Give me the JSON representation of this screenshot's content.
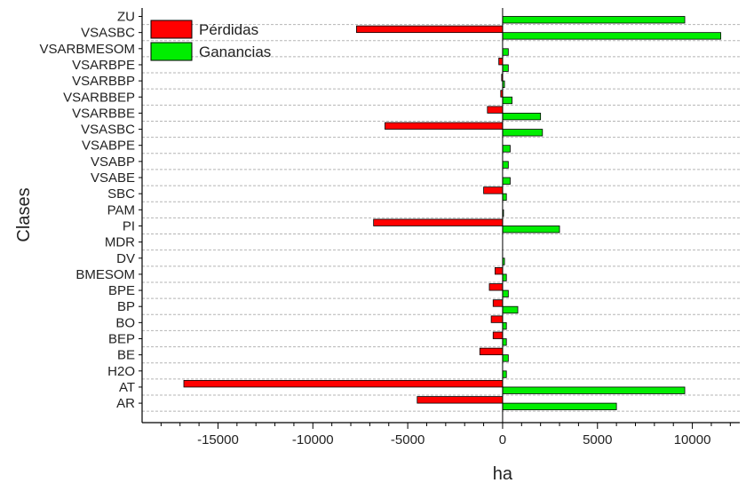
{
  "chart_data": {
    "type": "bar",
    "orientation": "horizontal",
    "ylabel": "Clases",
    "xlabel": "ha",
    "xlim": [
      -19000,
      12500
    ],
    "xticks": [
      -15000,
      -10000,
      -5000,
      0,
      5000,
      10000
    ],
    "xtick_labels": [
      "-15000",
      "-10000",
      "-5000",
      "0",
      "5000",
      "10000"
    ],
    "grid": "horizontal dashed",
    "legend_position": "top-left",
    "categories": [
      "ZU",
      "VSASBC",
      "VSARBMESOM",
      "VSARBPE",
      "VSARBBP",
      "VSARBBEP",
      "VSARBBE",
      "VSASBC",
      "VSABPE",
      "VSABP",
      "VSABE",
      "SBC",
      "PAM",
      "PI",
      "MDR",
      "DV",
      "BMESOM",
      "BPE",
      "BP",
      "BO",
      "BEP",
      "BE",
      "H2O",
      "AT",
      "AR"
    ],
    "series": [
      {
        "name": "Pérdidas",
        "color": "#ff0000",
        "values": [
          0,
          -7700,
          0,
          -200,
          -50,
          -100,
          -800,
          -6200,
          0,
          0,
          0,
          -1000,
          0,
          -6800,
          0,
          0,
          -400,
          -700,
          -500,
          -600,
          -500,
          -1200,
          0,
          -16800,
          -4500
        ]
      },
      {
        "name": "Ganancias",
        "color": "#00ee00",
        "values": [
          9600,
          11500,
          300,
          300,
          100,
          500,
          2000,
          2100,
          400,
          300,
          400,
          200,
          50,
          3000,
          0,
          100,
          200,
          300,
          800,
          200,
          200,
          300,
          200,
          9600,
          6000
        ]
      }
    ]
  }
}
